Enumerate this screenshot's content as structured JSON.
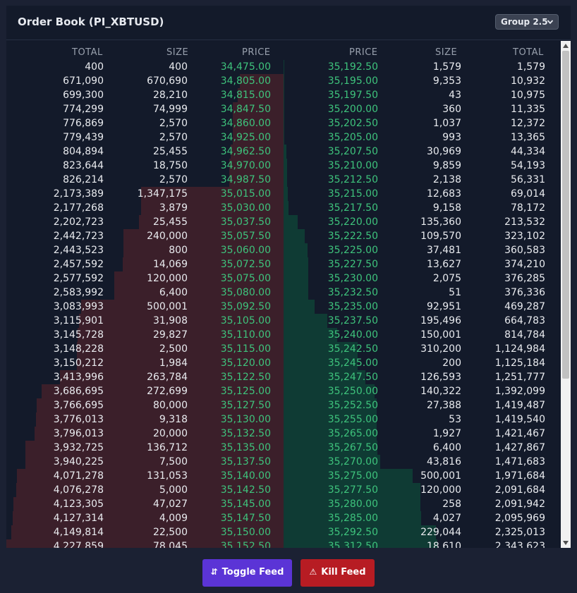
{
  "title": "Order Book (PI_XBTUSD)",
  "group": {
    "selected": "Group 2.5",
    "icon": "chevron-down-icon"
  },
  "bids": {
    "headers": [
      "TOTAL",
      "SIZE",
      "PRICE"
    ],
    "rows": [
      {
        "total": "400",
        "size": "400",
        "price": "34,475.00"
      },
      {
        "total": "671,090",
        "size": "670,690",
        "price": "34,805.00"
      },
      {
        "total": "699,300",
        "size": "28,210",
        "price": "34,815.00"
      },
      {
        "total": "774,299",
        "size": "74,999",
        "price": "34,847.50"
      },
      {
        "total": "776,869",
        "size": "2,570",
        "price": "34,860.00"
      },
      {
        "total": "779,439",
        "size": "2,570",
        "price": "34,925.00"
      },
      {
        "total": "804,894",
        "size": "25,455",
        "price": "34,962.50"
      },
      {
        "total": "823,644",
        "size": "18,750",
        "price": "34,970.00"
      },
      {
        "total": "826,214",
        "size": "2,570",
        "price": "34,987.50"
      },
      {
        "total": "2,173,389",
        "size": "1,347,175",
        "price": "35,015.00"
      },
      {
        "total": "2,177,268",
        "size": "3,879",
        "price": "35,030.00"
      },
      {
        "total": "2,202,723",
        "size": "25,455",
        "price": "35,037.50"
      },
      {
        "total": "2,442,723",
        "size": "240,000",
        "price": "35,057.50"
      },
      {
        "total": "2,443,523",
        "size": "800",
        "price": "35,060.00"
      },
      {
        "total": "2,457,592",
        "size": "14,069",
        "price": "35,072.50"
      },
      {
        "total": "2,577,592",
        "size": "120,000",
        "price": "35,075.00"
      },
      {
        "total": "2,583,992",
        "size": "6,400",
        "price": "35,080.00"
      },
      {
        "total": "3,083,993",
        "size": "500,001",
        "price": "35,092.50"
      },
      {
        "total": "3,115,901",
        "size": "31,908",
        "price": "35,105.00"
      },
      {
        "total": "3,145,728",
        "size": "29,827",
        "price": "35,110.00"
      },
      {
        "total": "3,148,228",
        "size": "2,500",
        "price": "35,115.00"
      },
      {
        "total": "3,150,212",
        "size": "1,984",
        "price": "35,120.00"
      },
      {
        "total": "3,413,996",
        "size": "263,784",
        "price": "35,122.50"
      },
      {
        "total": "3,686,695",
        "size": "272,699",
        "price": "35,125.00"
      },
      {
        "total": "3,766,695",
        "size": "80,000",
        "price": "35,127.50"
      },
      {
        "total": "3,776,013",
        "size": "9,318",
        "price": "35,130.00"
      },
      {
        "total": "3,796,013",
        "size": "20,000",
        "price": "35,132.50"
      },
      {
        "total": "3,932,725",
        "size": "136,712",
        "price": "35,135.00"
      },
      {
        "total": "3,940,225",
        "size": "7,500",
        "price": "35,137.50"
      },
      {
        "total": "4,071,278",
        "size": "131,053",
        "price": "35,140.00"
      },
      {
        "total": "4,076,278",
        "size": "5,000",
        "price": "35,142.50"
      },
      {
        "total": "4,123,305",
        "size": "47,027",
        "price": "35,145.00"
      },
      {
        "total": "4,127,314",
        "size": "4,009",
        "price": "35,147.50"
      },
      {
        "total": "4,149,814",
        "size": "22,500",
        "price": "35,150.00"
      },
      {
        "total": "4,227,859",
        "size": "78,045",
        "price": "35,152.50"
      }
    ]
  },
  "asks": {
    "headers": [
      "PRICE",
      "SIZE",
      "TOTAL"
    ],
    "rows": [
      {
        "price": "35,192.50",
        "size": "1,579",
        "total": "1,579"
      },
      {
        "price": "35,195.00",
        "size": "9,353",
        "total": "10,932"
      },
      {
        "price": "35,197.50",
        "size": "43",
        "total": "10,975"
      },
      {
        "price": "35,200.00",
        "size": "360",
        "total": "11,335"
      },
      {
        "price": "35,202.50",
        "size": "1,037",
        "total": "12,372"
      },
      {
        "price": "35,205.00",
        "size": "993",
        "total": "13,365"
      },
      {
        "price": "35,207.50",
        "size": "30,969",
        "total": "44,334"
      },
      {
        "price": "35,210.00",
        "size": "9,859",
        "total": "54,193"
      },
      {
        "price": "35,212.50",
        "size": "2,138",
        "total": "56,331"
      },
      {
        "price": "35,215.00",
        "size": "12,683",
        "total": "69,014"
      },
      {
        "price": "35,217.50",
        "size": "9,158",
        "total": "78,172"
      },
      {
        "price": "35,220.00",
        "size": "135,360",
        "total": "213,532"
      },
      {
        "price": "35,222.50",
        "size": "109,570",
        "total": "323,102"
      },
      {
        "price": "35,225.00",
        "size": "37,481",
        "total": "360,583"
      },
      {
        "price": "35,227.50",
        "size": "13,627",
        "total": "374,210"
      },
      {
        "price": "35,230.00",
        "size": "2,075",
        "total": "376,285"
      },
      {
        "price": "35,232.50",
        "size": "51",
        "total": "376,336"
      },
      {
        "price": "35,235.00",
        "size": "92,951",
        "total": "469,287"
      },
      {
        "price": "35,237.50",
        "size": "195,496",
        "total": "664,783"
      },
      {
        "price": "35,240.00",
        "size": "150,001",
        "total": "814,784"
      },
      {
        "price": "35,242.50",
        "size": "310,200",
        "total": "1,124,984"
      },
      {
        "price": "35,245.00",
        "size": "200",
        "total": "1,125,184"
      },
      {
        "price": "35,247.50",
        "size": "126,593",
        "total": "1,251,777"
      },
      {
        "price": "35,250.00",
        "size": "140,322",
        "total": "1,392,099"
      },
      {
        "price": "35,252.50",
        "size": "27,388",
        "total": "1,419,487"
      },
      {
        "price": "35,255.00",
        "size": "53",
        "total": "1,419,540"
      },
      {
        "price": "35,265.00",
        "size": "1,927",
        "total": "1,421,467"
      },
      {
        "price": "35,267.50",
        "size": "6,400",
        "total": "1,427,867"
      },
      {
        "price": "35,270.00",
        "size": "43,816",
        "total": "1,471,683"
      },
      {
        "price": "35,275.00",
        "size": "500,001",
        "total": "1,971,684"
      },
      {
        "price": "35,277.50",
        "size": "120,000",
        "total": "2,091,684"
      },
      {
        "price": "35,280.00",
        "size": "258",
        "total": "2,091,942"
      },
      {
        "price": "35,285.00",
        "size": "4,027",
        "total": "2,095,969"
      },
      {
        "price": "35,292.50",
        "size": "229,044",
        "total": "2,325,013"
      },
      {
        "price": "35,312.50",
        "size": "18,610",
        "total": "2,343,623"
      }
    ]
  },
  "buttons": {
    "toggle": {
      "label": "Toggle Feed",
      "icon": "swap-arrows-icon"
    },
    "kill": {
      "label": "Kill Feed",
      "icon": "warning-icon"
    }
  },
  "colors": {
    "bid_price": "#3ec37c",
    "ask_price": "#3ec37c",
    "bid_depth": "#3b1f2a",
    "ask_depth": "#0f3b34",
    "toggle_button": "#5b34d6",
    "kill_button": "#b71c23"
  }
}
